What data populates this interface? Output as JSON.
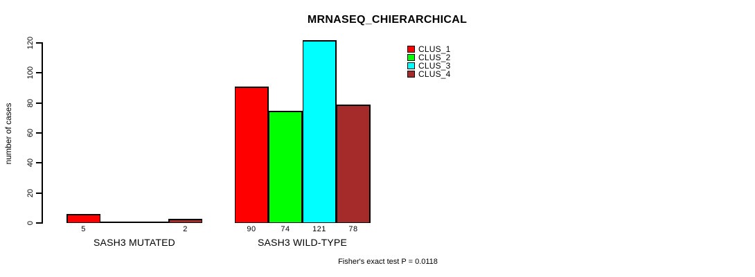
{
  "chart_data": {
    "type": "bar",
    "title": "MRNASEQ_CHIERARCHICAL",
    "xlabel": "",
    "ylabel": "number of cases",
    "categories": [
      "SASH3 MUTATED",
      "SASH3 WILD-TYPE"
    ],
    "series": [
      {
        "name": "CLUS_1",
        "color": "#ff0000",
        "values": [
          5,
          90
        ]
      },
      {
        "name": "CLUS_2",
        "color": "#00ff00",
        "values": [
          0,
          74
        ]
      },
      {
        "name": "CLUS_3",
        "color": "#00ffff",
        "values": [
          0,
          121
        ]
      },
      {
        "name": "CLUS_4",
        "color": "#a52a2a",
        "values": [
          2,
          78
        ]
      }
    ],
    "bar_value_labels": {
      "SASH3 MUTATED": [
        "5",
        "",
        "",
        "2"
      ],
      "SASH3 WILD-TYPE": [
        "90",
        "74",
        "121",
        "78"
      ]
    },
    "ylim": [
      0,
      120
    ],
    "yticks": [
      0,
      20,
      40,
      60,
      80,
      100,
      120
    ],
    "grid": false,
    "legend_position": "top-right-outside-plot",
    "annotation": "Fisher's exact test P = 0.0118"
  }
}
